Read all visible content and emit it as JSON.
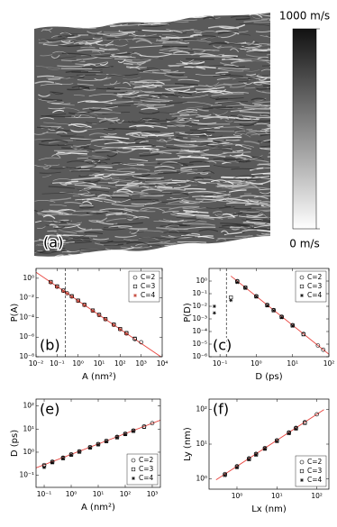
{
  "chart_data": [
    {
      "type": "image",
      "label": "(a)",
      "clim": [
        0,
        1000
      ],
      "cticks": [
        {
          "value": 0,
          "label": "0 m/s"
        },
        {
          "value": 1000,
          "label": "1000 m/s"
        }
      ]
    },
    {
      "type": "scatter",
      "label": "(b)",
      "xlabel": "A (nm²)",
      "ylabel": "P(A)",
      "log_x": true,
      "log_y": true,
      "xlim": [
        0.01,
        10000
      ],
      "ylim": [
        1e-08,
        10
      ],
      "xticks": [
        {
          "value": 0.01,
          "label": "10⁻²"
        },
        {
          "value": 0.1,
          "label": "10⁻¹"
        },
        {
          "value": 1,
          "label": "10⁰"
        },
        {
          "value": 10,
          "label": "10¹"
        },
        {
          "value": 100,
          "label": "10²"
        },
        {
          "value": 1000,
          "label": "10³"
        },
        {
          "value": 10000,
          "label": "10⁴"
        }
      ],
      "yticks": [
        {
          "value": 1,
          "label": "10⁰"
        },
        {
          "value": 0.01,
          "label": "10⁻²"
        },
        {
          "value": 0.0001,
          "label": "10⁻⁴"
        },
        {
          "value": 1e-06,
          "label": "10⁻⁶"
        },
        {
          "value": 1e-08,
          "label": "10⁻⁸"
        }
      ],
      "vline": 0.25,
      "legend": "upper right",
      "fit": {
        "color": "#e8413b",
        "x": [
          0.01,
          10000
        ],
        "values": [
          4.1,
          8.1e-09
        ]
      },
      "series": [
        {
          "name": "C=2",
          "marker": "circle",
          "color": "#000000",
          "x": [
            0.05,
            0.1,
            0.2,
            0.3,
            0.5,
            1,
            2,
            5,
            10,
            20,
            50,
            100,
            200,
            500,
            1000
          ],
          "values": [
            0.4,
            0.14,
            0.054,
            0.03,
            0.014,
            0.0051,
            0.0019,
            0.0005,
            0.00018,
            6.8e-05,
            1.8e-05,
            6.5e-06,
            2.4e-06,
            6.3e-07,
            3e-07
          ]
        },
        {
          "name": "C=3",
          "marker": "square",
          "color": "#000000",
          "x": [
            0.05,
            0.1,
            0.2,
            0.5,
            1,
            2,
            5,
            10,
            20,
            50,
            100,
            200,
            500
          ],
          "values": [
            0.42,
            0.15,
            0.056,
            0.015,
            0.0053,
            0.002,
            0.00052,
            0.00019,
            7e-05,
            1.9e-05,
            6.8e-06,
            2.6e-06,
            7e-07
          ]
        },
        {
          "name": "C=4",
          "marker": "star",
          "color": "#c0392b",
          "x": [
            0.05,
            0.1,
            0.2,
            0.3,
            0.5,
            1,
            2,
            5,
            10,
            20,
            50,
            100,
            200
          ],
          "values": [
            0.38,
            0.13,
            0.05,
            0.029,
            0.013,
            0.0049,
            0.0018,
            0.00048,
            0.00017,
            6.5e-05,
            1.7e-05,
            6.2e-06,
            2.2e-06
          ]
        }
      ]
    },
    {
      "type": "scatter",
      "label": "(c)",
      "xlabel": "D (ps)",
      "ylabel": "P(D)",
      "log_x": true,
      "log_y": true,
      "xlim": [
        0.05,
        100
      ],
      "ylim": [
        1e-06,
        10
      ],
      "xticks": [
        {
          "value": 0.1,
          "label": "10⁻¹"
        },
        {
          "value": 1,
          "label": "10⁰"
        },
        {
          "value": 10,
          "label": "10¹"
        },
        {
          "value": 100,
          "label": "10²"
        }
      ],
      "yticks": [
        {
          "value": 1,
          "label": "10⁰"
        },
        {
          "value": 0.1,
          "label": "10⁻¹"
        },
        {
          "value": 0.01,
          "label": "10⁻²"
        },
        {
          "value": 0.001,
          "label": "10⁻³"
        },
        {
          "value": 0.0001,
          "label": "10⁻⁴"
        },
        {
          "value": 1e-05,
          "label": "10⁻⁵"
        },
        {
          "value": 1e-06,
          "label": "10⁻⁶"
        }
      ],
      "vline": 0.15,
      "legend": "upper right",
      "fit": {
        "color": "#e8413b",
        "x": [
          0.2,
          100
        ],
        "values": [
          2.5,
          1.6e-06
        ]
      },
      "series": [
        {
          "name": "C=2",
          "marker": "circle",
          "color": "#000000",
          "x": [
            0.3,
            0.5,
            1,
            2,
            3,
            5,
            10,
            20,
            50,
            70
          ],
          "values": [
            1,
            0.31,
            0.063,
            0.013,
            0.005,
            0.0015,
            0.00032,
            6.5e-05,
            7.8e-06,
            3.6e-06
          ]
        },
        {
          "name": "C=3",
          "marker": "square",
          "color": "#000000",
          "x": [
            0.2,
            0.3,
            0.5,
            1,
            2,
            3,
            5,
            10,
            20
          ],
          "values": [
            0.05,
            0.9,
            0.3,
            0.06,
            0.012,
            0.0048,
            0.0014,
            0.0003,
            6e-05
          ]
        },
        {
          "name": "C=4",
          "marker": "star",
          "color": "#000000",
          "x": [
            0.07,
            0.07,
            0.2,
            0.3,
            0.5,
            1,
            2,
            3,
            5,
            10
          ],
          "values": [
            0.01,
            0.003,
            0.03,
            0.8,
            0.28,
            0.058,
            0.011,
            0.0046,
            0.0013,
            0.00028
          ]
        }
      ]
    },
    {
      "type": "scatter",
      "label": "(e)",
      "xlabel": "A (nm²)",
      "ylabel": "D (ps)",
      "log_x": true,
      "log_y": true,
      "xlim": [
        0.05,
        2000
      ],
      "ylim": [
        0.03,
        200
      ],
      "xticks": [
        {
          "value": 0.1,
          "label": "10⁻¹"
        },
        {
          "value": 1,
          "label": "10⁰"
        },
        {
          "value": 10,
          "label": "10¹"
        },
        {
          "value": 100,
          "label": "10²"
        },
        {
          "value": 1000,
          "label": "10³"
        }
      ],
      "yticks": [
        {
          "value": 0.1,
          "label": "10⁻¹"
        },
        {
          "value": 1,
          "label": "10⁰"
        },
        {
          "value": 10,
          "label": "10¹"
        },
        {
          "value": 100,
          "label": "10²"
        }
      ],
      "legend": "lower right",
      "fit": {
        "color": "#e8413b",
        "x": [
          0.05,
          2000
        ],
        "values": [
          0.21,
          24.5
        ]
      },
      "series": [
        {
          "name": "C=2",
          "marker": "circle",
          "color": "#000000",
          "x": [
            0.1,
            0.2,
            0.5,
            1,
            2,
            5,
            10,
            20,
            50,
            100,
            200,
            500,
            1000
          ],
          "values": [
            0.28,
            0.39,
            0.58,
            0.8,
            1.09,
            1.65,
            2.25,
            3.1,
            4.6,
            6.3,
            8.7,
            13,
            18
          ]
        },
        {
          "name": "C=3",
          "marker": "square",
          "color": "#000000",
          "x": [
            0.1,
            0.2,
            0.5,
            1,
            2,
            5,
            10,
            20,
            50,
            100,
            200,
            500
          ],
          "values": [
            0.25,
            0.37,
            0.55,
            0.78,
            1.05,
            1.6,
            2.2,
            3,
            4.4,
            6.1,
            8.4,
            12.5
          ]
        },
        {
          "name": "C=4",
          "marker": "star",
          "color": "#000000",
          "x": [
            0.1,
            0.2,
            0.5,
            1,
            2,
            5,
            10,
            20,
            50,
            100,
            200
          ],
          "values": [
            0.22,
            0.35,
            0.53,
            0.75,
            1.02,
            1.55,
            2.1,
            2.9,
            4.3,
            5.9,
            8.1
          ]
        }
      ]
    },
    {
      "type": "scatter",
      "label": "(f)",
      "xlabel": "Lx (nm)",
      "ylabel": "Ly (nm)",
      "log_x": true,
      "log_y": true,
      "xlim": [
        0.2,
        200
      ],
      "ylim": [
        0.5,
        200
      ],
      "xticks": [
        {
          "value": 1,
          "label": "10⁰"
        },
        {
          "value": 10,
          "label": "10¹"
        },
        {
          "value": 100,
          "label": "10²"
        }
      ],
      "yticks": [
        {
          "value": 1,
          "label": "10⁰"
        },
        {
          "value": 10,
          "label": "10¹"
        },
        {
          "value": 100,
          "label": "10²"
        }
      ],
      "legend": "lower right",
      "fit": {
        "color": "#e8413b",
        "x": [
          0.3,
          150
        ],
        "values": [
          0.93,
          98.7
        ]
      },
      "series": [
        {
          "name": "C=2",
          "marker": "circle",
          "color": "#000000",
          "x": [
            0.5,
            1,
            2,
            3,
            5,
            10,
            20,
            30,
            50,
            100
          ],
          "values": [
            1.37,
            2.3,
            3.87,
            5.24,
            7.7,
            12.9,
            21.8,
            29.5,
            43,
            72.7
          ]
        },
        {
          "name": "C=3",
          "marker": "square",
          "color": "#000000",
          "x": [
            0.5,
            1,
            2,
            3,
            5,
            10,
            20,
            30,
            50
          ],
          "values": [
            1.3,
            2.2,
            3.7,
            5,
            7.4,
            12.4,
            21,
            28.4,
            41
          ]
        },
        {
          "name": "C=4",
          "marker": "star",
          "color": "#000000",
          "x": [
            0.5,
            1,
            2,
            3,
            5,
            10,
            20,
            30
          ],
          "values": [
            1.25,
            2.1,
            3.6,
            4.9,
            7.2,
            12,
            20.4,
            27.6
          ]
        }
      ]
    }
  ]
}
